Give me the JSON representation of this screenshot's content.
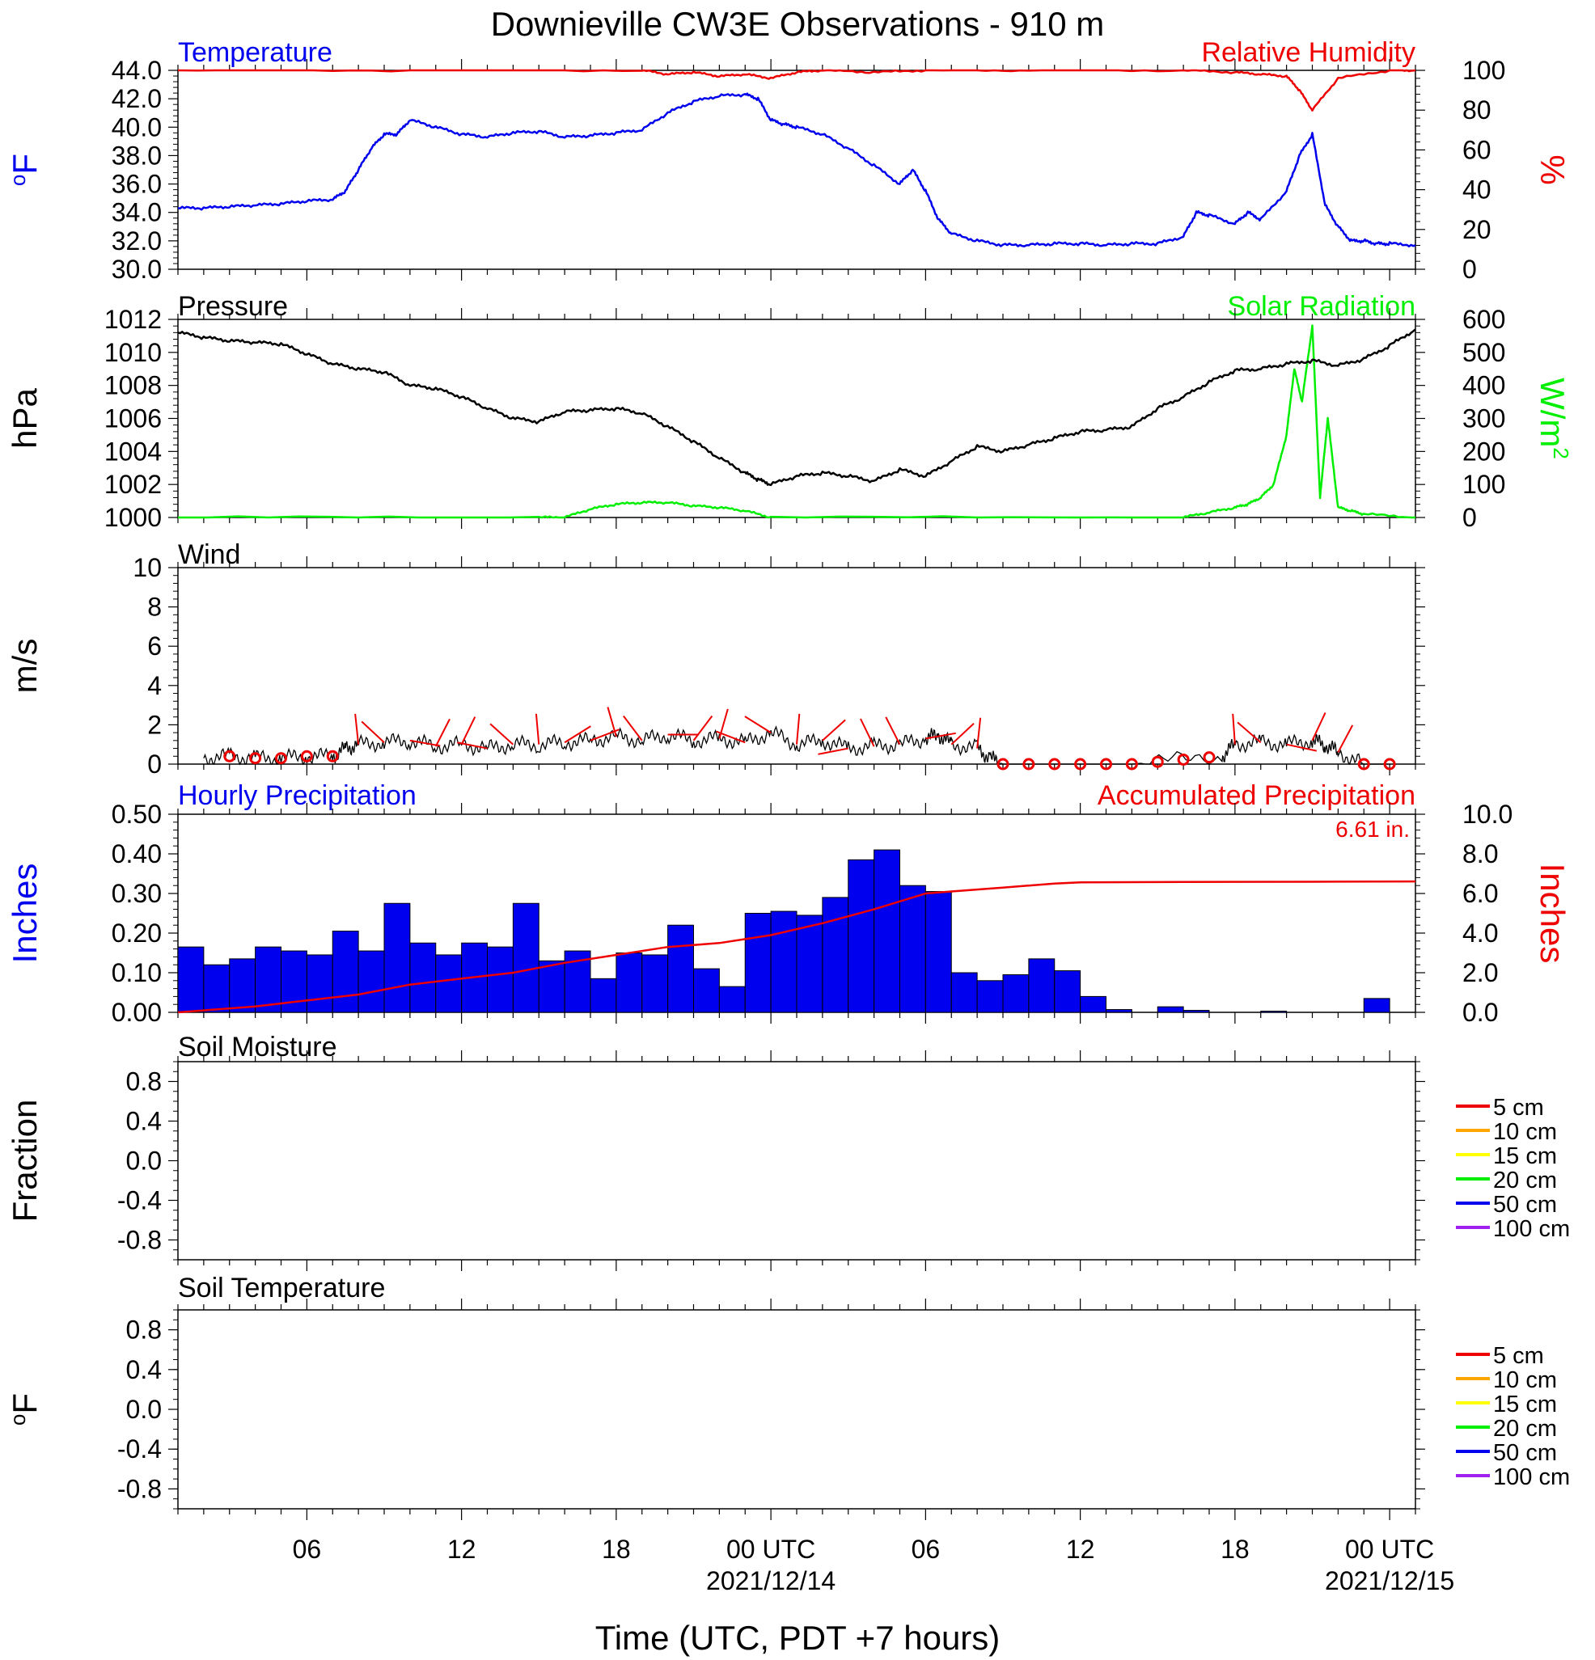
{
  "title": "Downieville CW3E Observations - 910 m",
  "x_axis": {
    "label": "Time (UTC, PDT +7 hours)",
    "start_hour": 1,
    "end_hour": 49,
    "ticks": [
      {
        "hour": 6,
        "label": "06",
        "date": ""
      },
      {
        "hour": 12,
        "label": "12",
        "date": ""
      },
      {
        "hour": 18,
        "label": "18",
        "date": ""
      },
      {
        "hour": 24,
        "label": "00 UTC",
        "date": "2021/12/14"
      },
      {
        "hour": 30,
        "label": "06",
        "date": ""
      },
      {
        "hour": 36,
        "label": "12",
        "date": ""
      },
      {
        "hour": 42,
        "label": "18",
        "date": ""
      },
      {
        "hour": 48,
        "label": "00 UTC",
        "date": "2021/12/15"
      }
    ]
  },
  "panels": {
    "temp_rh": {
      "left_title": "Temperature",
      "right_title": "Relative Humidity",
      "left_unit_prefix": "o",
      "left_unit": "F",
      "right_unit": "%",
      "left_ticks": [
        "30.0",
        "32.0",
        "34.0",
        "36.0",
        "38.0",
        "40.0",
        "42.0",
        "44.0"
      ],
      "right_ticks": [
        "0",
        "20",
        "40",
        "60",
        "80",
        "100"
      ]
    },
    "pressure_solar": {
      "left_title": "Pressure",
      "right_title": "Solar Radiation",
      "left_unit": "hPa",
      "right_unit_base": "W/m",
      "right_unit_sup": "2",
      "left_ticks": [
        "1000",
        "1002",
        "1004",
        "1006",
        "1008",
        "1010",
        "1012"
      ],
      "right_ticks": [
        "0",
        "100",
        "200",
        "300",
        "400",
        "500",
        "600"
      ]
    },
    "wind": {
      "left_title": "Wind",
      "left_unit": "m/s",
      "left_ticks": [
        "0",
        "2",
        "4",
        "6",
        "8",
        "10"
      ]
    },
    "precip": {
      "left_title": "Hourly Precipitation",
      "right_title": "Accumulated Precipitation",
      "total_label": "6.61 in.",
      "left_unit": "Inches",
      "right_unit": "Inches",
      "left_ticks": [
        "0.00",
        "0.10",
        "0.20",
        "0.30",
        "0.40",
        "0.50"
      ],
      "right_ticks": [
        "0.0",
        "2.0",
        "4.0",
        "6.0",
        "8.0",
        "10.0"
      ]
    },
    "soil_moisture": {
      "left_title": "Soil Moisture",
      "left_unit": "Fraction",
      "left_ticks": [
        "-0.8",
        "-0.4",
        "0.0",
        "0.4",
        "0.8"
      ],
      "legend": [
        "5 cm",
        "10 cm",
        "15 cm",
        "20 cm",
        "50 cm",
        "100 cm"
      ]
    },
    "soil_temp": {
      "left_title": "Soil Temperature",
      "left_unit_prefix": "o",
      "left_unit": "F",
      "left_ticks": [
        "-0.8",
        "-0.4",
        "0.0",
        "0.4",
        "0.8"
      ],
      "legend": [
        "5 cm",
        "10 cm",
        "15 cm",
        "20 cm",
        "50 cm",
        "100 cm"
      ]
    }
  },
  "colors": {
    "temperature": "#0000ee",
    "humidity": "#ee0000",
    "pressure": "#000000",
    "solar": "#00ee00",
    "wind": "#000000",
    "wind_barb": "#ee0000",
    "precip_bar": "#0000ee",
    "accum": "#ee0000",
    "legend": [
      "#ee0000",
      "#ffa500",
      "#ffff00",
      "#00ee00",
      "#0000ee",
      "#a020f0"
    ]
  },
  "chart_data": [
    {
      "type": "line",
      "title": "Temperature",
      "ylabel": "oF",
      "ylim": [
        30,
        44
      ],
      "x_unit": "hours since 2021/12/13 00 UTC",
      "x": [
        1,
        2,
        3,
        4,
        5,
        6,
        7,
        7.5,
        8,
        8.5,
        9,
        9.5,
        10,
        11,
        12,
        13,
        14,
        15,
        16,
        17,
        18,
        19,
        20,
        21,
        22,
        23,
        23.5,
        24,
        24.5,
        25,
        26,
        27,
        28,
        29,
        29.5,
        30,
        30.5,
        31,
        32,
        33,
        34,
        35,
        36,
        37,
        38,
        39,
        40,
        40.5,
        41,
        42,
        42.5,
        43,
        44,
        44.5,
        45,
        45.5,
        46,
        46.5,
        47,
        47.5,
        48,
        49
      ],
      "values": [
        34.3,
        34.3,
        34.4,
        34.5,
        34.6,
        34.8,
        34.9,
        35.5,
        37.0,
        38.5,
        39.5,
        39.5,
        40.5,
        40.0,
        39.5,
        39.3,
        39.6,
        39.7,
        39.3,
        39.4,
        39.6,
        39.8,
        41.0,
        41.8,
        42.2,
        42.3,
        42.0,
        40.5,
        40.2,
        40.0,
        39.5,
        38.5,
        37.3,
        36.0,
        37.0,
        35.5,
        33.5,
        32.5,
        32.0,
        31.7,
        31.7,
        31.8,
        31.8,
        31.7,
        31.8,
        31.8,
        32.3,
        34.0,
        33.8,
        33.2,
        34.0,
        33.5,
        35.5,
        38.0,
        39.5,
        34.5,
        33.0,
        32.0,
        32.0,
        31.8,
        31.8,
        31.7
      ]
    },
    {
      "type": "line",
      "title": "Relative Humidity",
      "ylabel": "%",
      "ylim": [
        0,
        100
      ],
      "x_unit": "hours since 2021/12/13 00 UTC",
      "x": [
        1,
        10,
        19,
        20,
        21,
        22,
        23,
        24,
        25,
        26,
        28,
        30,
        34,
        40,
        42,
        43,
        44,
        44.5,
        45,
        46,
        48,
        49
      ],
      "values": [
        100,
        100,
        100,
        98,
        99,
        97,
        98,
        96,
        99,
        100,
        99,
        100,
        100,
        100,
        99,
        98,
        97,
        90,
        80,
        96,
        100,
        100
      ]
    },
    {
      "type": "line",
      "title": "Pressure",
      "ylabel": "hPa",
      "ylim": [
        1000,
        1012
      ],
      "x_unit": "hours since 2021/12/13 00 UTC",
      "x": [
        1,
        2,
        3,
        4,
        5,
        6,
        7,
        8,
        9,
        10,
        11,
        12,
        13,
        14,
        15,
        16,
        17,
        18,
        19,
        20,
        21,
        22,
        23,
        23.5,
        24,
        25,
        26,
        27,
        28,
        29,
        30,
        31,
        32,
        33,
        34,
        35,
        36,
        37,
        38,
        39,
        40,
        41,
        42,
        43,
        44,
        45,
        46,
        47,
        48,
        49
      ],
      "values": [
        1011.2,
        1010.9,
        1010.7,
        1010.6,
        1010.5,
        1009.9,
        1009.3,
        1009.0,
        1008.8,
        1008.0,
        1007.8,
        1007.3,
        1006.6,
        1006.0,
        1005.8,
        1006.4,
        1006.5,
        1006.6,
        1006.3,
        1005.5,
        1004.6,
        1003.6,
        1002.7,
        1002.3,
        1002.0,
        1002.5,
        1002.7,
        1002.5,
        1002.2,
        1002.9,
        1002.5,
        1003.4,
        1004.3,
        1004.0,
        1004.4,
        1004.8,
        1005.2,
        1005.3,
        1005.5,
        1006.6,
        1007.3,
        1008.2,
        1008.9,
        1009.0,
        1009.3,
        1009.5,
        1009.2,
        1009.6,
        1010.4,
        1011.4
      ]
    },
    {
      "type": "line",
      "title": "Solar Radiation",
      "ylabel": "W/m2",
      "ylim": [
        0,
        600
      ],
      "x_unit": "hours since 2021/12/13 00 UTC",
      "x": [
        1,
        15,
        16,
        17,
        18,
        19,
        20,
        21,
        22,
        23,
        24,
        40,
        41,
        42,
        42.5,
        43,
        43.5,
        44,
        44.3,
        44.6,
        45,
        45.3,
        45.6,
        46,
        46.5,
        47,
        49
      ],
      "values": [
        0,
        0,
        0,
        25,
        40,
        45,
        45,
        35,
        30,
        20,
        0,
        0,
        15,
        30,
        40,
        60,
        100,
        250,
        450,
        350,
        580,
        60,
        300,
        30,
        20,
        10,
        0
      ]
    },
    {
      "type": "line",
      "title": "Wind",
      "ylabel": "m/s",
      "ylim": [
        0,
        10
      ],
      "x_unit": "hours since 2021/12/13 00 UTC",
      "x": [
        2,
        3,
        4,
        5,
        6,
        7,
        7.5,
        8,
        9,
        10,
        11,
        12,
        13,
        14,
        15,
        16,
        17,
        18,
        19,
        20,
        21,
        22,
        23,
        24,
        25,
        26,
        27,
        28,
        29,
        30,
        30.5,
        31,
        32,
        32.5,
        33,
        34,
        35,
        36,
        37,
        38,
        41.5,
        42,
        43,
        44,
        45,
        45.5,
        46,
        47,
        48
      ],
      "values": [
        0.3,
        0.4,
        0.3,
        0.3,
        0.4,
        0.4,
        0.8,
        1.0,
        1.1,
        1.2,
        0.9,
        1.0,
        0.8,
        1.0,
        1.0,
        1.1,
        1.2,
        1.4,
        1.2,
        1.5,
        1.2,
        1.3,
        1.1,
        1.6,
        1.0,
        1.2,
        0.8,
        0.9,
        1.0,
        1.3,
        1.5,
        1.0,
        0.8,
        0.3,
        0,
        0,
        0,
        0,
        0,
        0,
        0.4,
        1.0,
        1.1,
        1.0,
        1.2,
        1.0,
        0.6,
        0,
        0
      ]
    },
    {
      "type": "bar",
      "title": "Hourly Precipitation",
      "ylabel": "Inches",
      "ylim": [
        0,
        0.5
      ],
      "categories": [
        1,
        2,
        3,
        4,
        5,
        6,
        7,
        8,
        9,
        10,
        11,
        12,
        13,
        14,
        15,
        16,
        17,
        18,
        19,
        20,
        21,
        22,
        23,
        24,
        25,
        26,
        27,
        28,
        29,
        30,
        31,
        32,
        33,
        34,
        35,
        36,
        37,
        38,
        39,
        40,
        41,
        42,
        43,
        44,
        45,
        46,
        47,
        48
      ],
      "values": [
        0.165,
        0.12,
        0.135,
        0.165,
        0.155,
        0.145,
        0.205,
        0.155,
        0.275,
        0.175,
        0.145,
        0.175,
        0.165,
        0.275,
        0.13,
        0.155,
        0.085,
        0.15,
        0.145,
        0.22,
        0.11,
        0.065,
        0.25,
        0.255,
        0.245,
        0.29,
        0.385,
        0.41,
        0.32,
        0.305,
        0.1,
        0.08,
        0.095,
        0.135,
        0.105,
        0.04,
        0.007,
        0,
        0.014,
        0.005,
        0,
        0,
        0.003,
        0,
        0,
        0,
        0.035,
        0
      ]
    },
    {
      "type": "line",
      "title": "Accumulated Precipitation",
      "ylabel": "Inches",
      "ylim": [
        0,
        10
      ],
      "x_unit": "hours since 2021/12/13 00 UTC",
      "x": [
        1,
        4,
        6,
        8,
        10,
        12,
        14,
        16,
        18,
        20,
        22,
        24,
        26,
        28,
        29,
        30,
        31,
        33,
        34,
        35,
        36,
        40,
        45,
        49
      ],
      "values": [
        0,
        0.3,
        0.6,
        0.9,
        1.4,
        1.7,
        2.0,
        2.5,
        2.9,
        3.3,
        3.5,
        3.9,
        4.5,
        5.2,
        5.6,
        6.0,
        6.1,
        6.3,
        6.4,
        6.5,
        6.56,
        6.58,
        6.59,
        6.61
      ]
    }
  ]
}
